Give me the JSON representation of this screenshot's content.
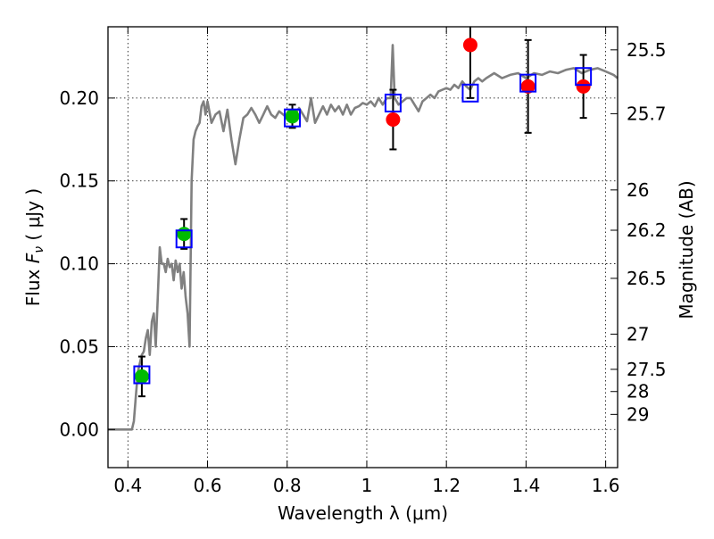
{
  "chart_data": {
    "type": "scatter",
    "xlabel": "Wavelength  λ (μm)",
    "ylabel": "Flux  F_ν  ( μJy )",
    "ylabel_right": "Magnitude (AB)",
    "xlim": [
      0.35,
      1.63
    ],
    "ylim": [
      -0.023,
      0.243
    ],
    "grid": true,
    "x_ticks": [
      0.4,
      0.6,
      0.8,
      1.0,
      1.2,
      1.4,
      1.6
    ],
    "x_tick_labels": [
      "0.4",
      "0.6",
      "0.8",
      "1",
      "1.2",
      "1.4",
      "1.6"
    ],
    "y_ticks": [
      0.0,
      0.05,
      0.1,
      0.15,
      0.2
    ],
    "y_tick_labels": [
      "0.00",
      "0.05",
      "0.10",
      "0.15",
      "0.20"
    ],
    "right_ticks": [
      {
        "label": "25.5",
        "mag": 25.5
      },
      {
        "label": "25.7",
        "mag": 25.7
      },
      {
        "label": "26",
        "mag": 26.0
      },
      {
        "label": "26.2",
        "mag": 26.2
      },
      {
        "label": "26.5",
        "mag": 26.5
      },
      {
        "label": "27",
        "mag": 27.0
      },
      {
        "label": "27.5",
        "mag": 27.5
      },
      {
        "label": "28",
        "mag": 28.0
      },
      {
        "label": "29",
        "mag": 29.0
      }
    ],
    "colors": {
      "model": "#808080",
      "model_flux": "#0000ff",
      "ground_phot": "#00bb00",
      "nir_phot": "#ff0000",
      "errorbar": "#000000"
    },
    "model_spectrum": {
      "name": "",
      "x": [
        0.35,
        0.41,
        0.415,
        0.42,
        0.425,
        0.43,
        0.435,
        0.44,
        0.445,
        0.45,
        0.455,
        0.46,
        0.465,
        0.47,
        0.475,
        0.48,
        0.485,
        0.49,
        0.495,
        0.5,
        0.505,
        0.51,
        0.515,
        0.52,
        0.525,
        0.53,
        0.535,
        0.54,
        0.545,
        0.55,
        0.555,
        0.56,
        0.565,
        0.57,
        0.575,
        0.58,
        0.585,
        0.59,
        0.595,
        0.6,
        0.61,
        0.62,
        0.63,
        0.64,
        0.65,
        0.66,
        0.67,
        0.68,
        0.69,
        0.7,
        0.71,
        0.72,
        0.73,
        0.74,
        0.75,
        0.76,
        0.77,
        0.78,
        0.79,
        0.8,
        0.81,
        0.82,
        0.83,
        0.84,
        0.85,
        0.86,
        0.87,
        0.88,
        0.89,
        0.9,
        0.91,
        0.92,
        0.93,
        0.94,
        0.95,
        0.96,
        0.97,
        0.98,
        0.99,
        1.0,
        1.01,
        1.02,
        1.03,
        1.04,
        1.05,
        1.06,
        1.065,
        1.07,
        1.075,
        1.08,
        1.09,
        1.1,
        1.11,
        1.12,
        1.13,
        1.14,
        1.15,
        1.16,
        1.17,
        1.18,
        1.19,
        1.2,
        1.21,
        1.22,
        1.23,
        1.24,
        1.25,
        1.26,
        1.27,
        1.28,
        1.29,
        1.3,
        1.32,
        1.34,
        1.36,
        1.38,
        1.4,
        1.42,
        1.44,
        1.46,
        1.48,
        1.5,
        1.52,
        1.54,
        1.56,
        1.58,
        1.6,
        1.62,
        1.63
      ],
      "y": [
        0.0,
        0.0,
        0.005,
        0.02,
        0.035,
        0.04,
        0.045,
        0.047,
        0.055,
        0.06,
        0.045,
        0.065,
        0.07,
        0.05,
        0.08,
        0.11,
        0.1,
        0.1,
        0.095,
        0.103,
        0.098,
        0.1,
        0.09,
        0.102,
        0.095,
        0.1,
        0.085,
        0.095,
        0.08,
        0.07,
        0.05,
        0.15,
        0.175,
        0.18,
        0.183,
        0.185,
        0.195,
        0.198,
        0.19,
        0.198,
        0.185,
        0.19,
        0.192,
        0.18,
        0.193,
        0.175,
        0.16,
        0.175,
        0.188,
        0.19,
        0.194,
        0.19,
        0.185,
        0.19,
        0.195,
        0.19,
        0.188,
        0.192,
        0.19,
        0.188,
        0.19,
        0.19,
        0.194,
        0.19,
        0.186,
        0.2,
        0.185,
        0.19,
        0.195,
        0.19,
        0.196,
        0.192,
        0.195,
        0.19,
        0.196,
        0.19,
        0.194,
        0.195,
        0.197,
        0.196,
        0.198,
        0.195,
        0.2,
        0.196,
        0.2,
        0.2,
        0.232,
        0.2,
        0.198,
        0.196,
        0.198,
        0.2,
        0.2,
        0.196,
        0.192,
        0.198,
        0.2,
        0.202,
        0.2,
        0.204,
        0.205,
        0.206,
        0.205,
        0.208,
        0.206,
        0.21,
        0.207,
        0.205,
        0.21,
        0.212,
        0.21,
        0.212,
        0.215,
        0.212,
        0.214,
        0.215,
        0.212,
        0.215,
        0.214,
        0.216,
        0.215,
        0.217,
        0.218,
        0.215,
        0.217,
        0.218,
        0.216,
        0.214,
        0.212
      ]
    },
    "model_flux": {
      "name": "",
      "x": [
        0.435,
        0.541,
        0.813,
        1.066,
        1.26,
        1.405,
        1.544
      ],
      "y": [
        0.033,
        0.115,
        0.188,
        0.197,
        0.203,
        0.209,
        0.213
      ]
    },
    "ground_phot": {
      "name": "",
      "x": [
        0.435,
        0.541,
        0.813
      ],
      "y": [
        0.032,
        0.118,
        0.189
      ],
      "err": [
        0.012,
        0.009,
        0.007
      ]
    },
    "nir_phot": {
      "name": "",
      "x": [
        1.066,
        1.26,
        1.405,
        1.544
      ],
      "y": [
        0.187,
        0.232,
        0.207,
        0.207
      ],
      "err": [
        0.018,
        0.032,
        0.028,
        0.019
      ]
    }
  }
}
